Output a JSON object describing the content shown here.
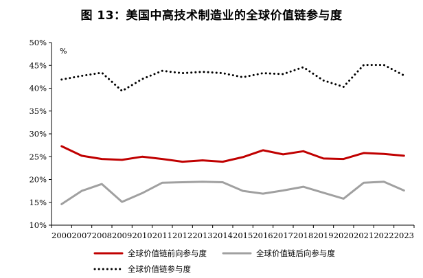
{
  "chart_data": {
    "type": "line",
    "title": "图 13：美国中高技术制造业的全球价值链参与度",
    "unit_label": "%",
    "categories": [
      "2000",
      "2007",
      "2008",
      "2009",
      "2010",
      "2011",
      "2012",
      "2013",
      "2014",
      "2015",
      "2016",
      "2017",
      "2018",
      "2019",
      "2020",
      "2021",
      "2022",
      "2023"
    ],
    "ylim": [
      10,
      50
    ],
    "yticks": [
      "10%",
      "15%",
      "20%",
      "25%",
      "30%",
      "35%",
      "40%",
      "45%",
      "50%"
    ],
    "grid": false,
    "legend_position": "bottom",
    "series": [
      {
        "name": "全球价值链前向参与度",
        "color": "#c00000",
        "style": "solid",
        "width": 3,
        "values": [
          27.3,
          25.2,
          24.5,
          24.3,
          25.0,
          24.5,
          23.9,
          24.2,
          23.9,
          24.9,
          26.4,
          25.5,
          26.2,
          24.6,
          24.5,
          25.8,
          25.6,
          25.2
        ]
      },
      {
        "name": "全球价值链后向参与度",
        "color": "#a0a0a0",
        "style": "solid",
        "width": 3,
        "values": [
          14.6,
          17.5,
          19.0,
          15.1,
          17.0,
          19.3,
          19.4,
          19.5,
          19.4,
          17.5,
          16.9,
          17.6,
          18.4,
          17.1,
          15.8,
          19.3,
          19.5,
          17.6
        ]
      },
      {
        "name": "全球价值链参与度",
        "color": "#000000",
        "style": "dotted",
        "width": 3,
        "values": [
          41.9,
          42.7,
          43.4,
          39.4,
          42.0,
          43.8,
          43.3,
          43.6,
          43.3,
          42.4,
          43.3,
          43.1,
          44.6,
          41.7,
          40.3,
          45.1,
          45.1,
          42.8
        ]
      }
    ]
  }
}
